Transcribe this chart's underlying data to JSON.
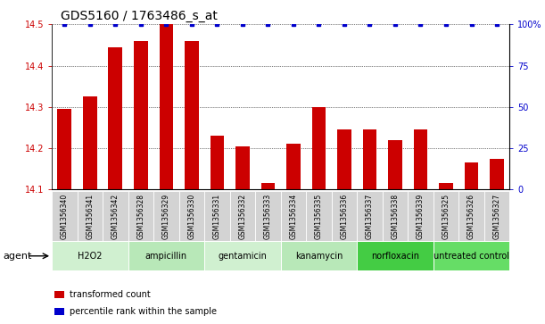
{
  "title": "GDS5160 / 1763486_s_at",
  "samples": [
    "GSM1356340",
    "GSM1356341",
    "GSM1356342",
    "GSM1356328",
    "GSM1356329",
    "GSM1356330",
    "GSM1356331",
    "GSM1356332",
    "GSM1356333",
    "GSM1356334",
    "GSM1356335",
    "GSM1356336",
    "GSM1356337",
    "GSM1356338",
    "GSM1356339",
    "GSM1356325",
    "GSM1356326",
    "GSM1356327"
  ],
  "values": [
    14.295,
    14.325,
    14.445,
    14.46,
    14.5,
    14.46,
    14.23,
    14.205,
    14.115,
    14.21,
    14.3,
    14.245,
    14.245,
    14.22,
    14.245,
    14.115,
    14.165,
    14.175
  ],
  "groups": [
    {
      "label": "H2O2",
      "start": 0,
      "end": 2,
      "color": "#d0f0d0"
    },
    {
      "label": "ampicillin",
      "start": 3,
      "end": 5,
      "color": "#b8e8b8"
    },
    {
      "label": "gentamicin",
      "start": 6,
      "end": 8,
      "color": "#d0f0d0"
    },
    {
      "label": "kanamycin",
      "start": 9,
      "end": 11,
      "color": "#b8e8b8"
    },
    {
      "label": "norfloxacin",
      "start": 12,
      "end": 14,
      "color": "#44cc44"
    },
    {
      "label": "untreated control",
      "start": 15,
      "end": 17,
      "color": "#66dd66"
    }
  ],
  "ylim_left": [
    14.1,
    14.5
  ],
  "ylim_right": [
    0,
    100
  ],
  "yticks_left": [
    14.1,
    14.2,
    14.3,
    14.4,
    14.5
  ],
  "yticks_right": [
    0,
    25,
    50,
    75,
    100
  ],
  "ytick_labels_right": [
    "0",
    "25",
    "50",
    "75",
    "100%"
  ],
  "bar_color": "#cc0000",
  "percentile_color": "#0000cc",
  "bar_bottom": 14.1,
  "legend_red": "transformed count",
  "legend_blue": "percentile rank within the sample",
  "title_fontsize": 10,
  "tick_fontsize": 7,
  "sample_fontsize": 5.5,
  "group_fontsize": 7,
  "legend_fontsize": 7,
  "agent_fontsize": 8
}
